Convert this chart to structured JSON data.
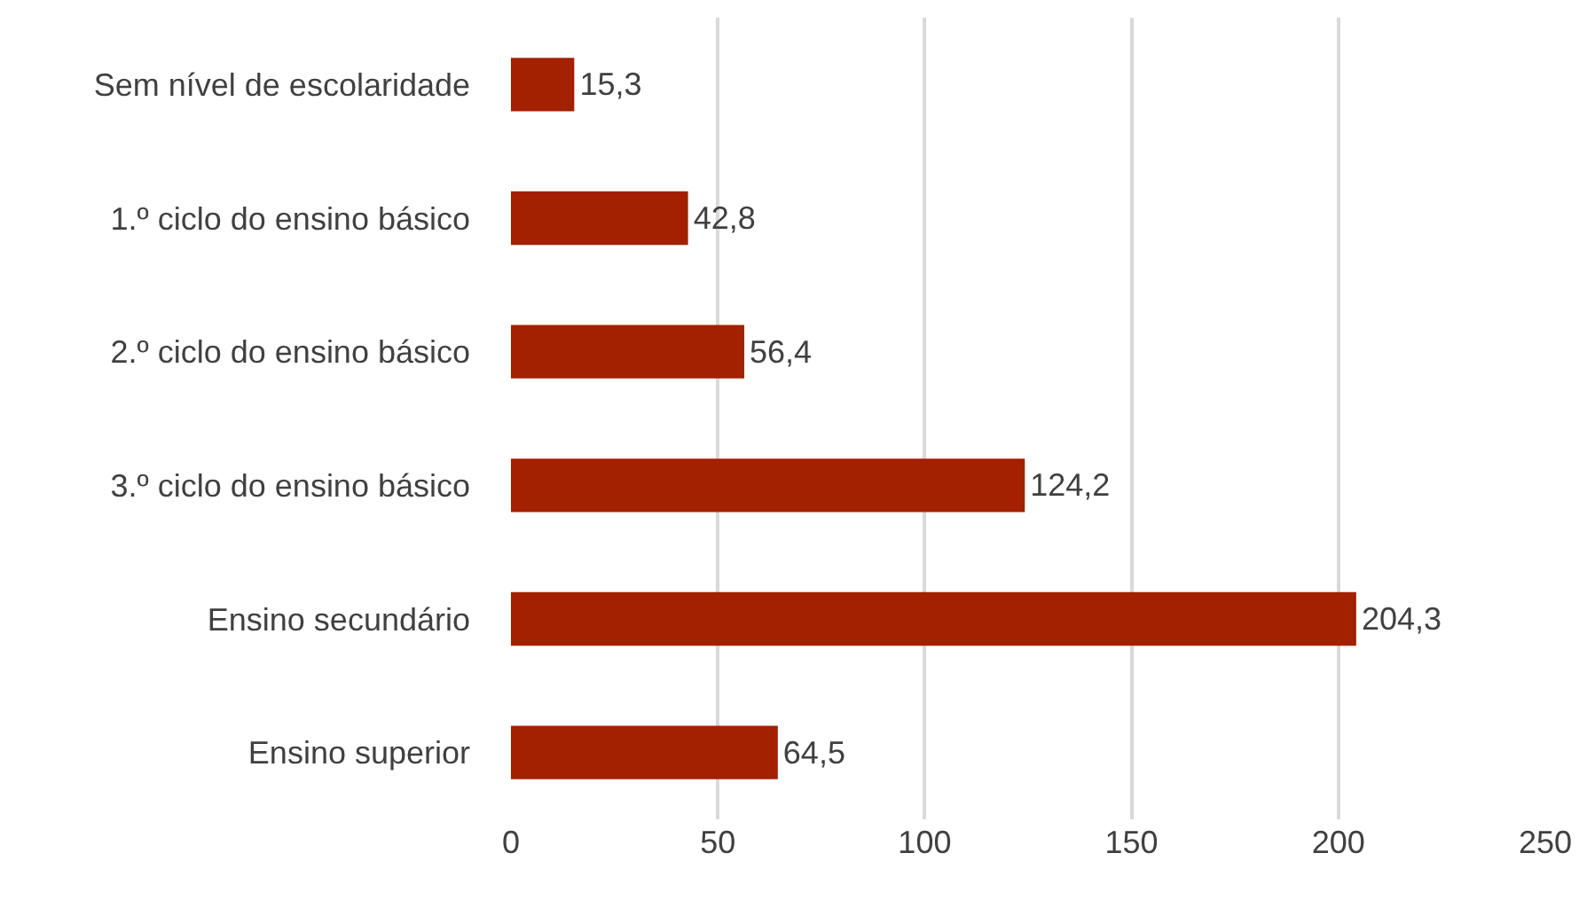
{
  "chart_data": {
    "type": "bar",
    "orientation": "horizontal",
    "categories": [
      "Sem nível de escolaridade",
      "1.º ciclo do ensino básico",
      "2.º ciclo do ensino básico",
      "3.º ciclo do ensino básico",
      "Ensino secundário",
      "Ensino superior"
    ],
    "values": [
      15.3,
      42.8,
      56.4,
      124.2,
      204.3,
      64.5
    ],
    "value_labels": [
      "15,3",
      "42,8",
      "56,4",
      "124,2",
      "204,3",
      "64,5"
    ],
    "color": "#a32000",
    "xlim": [
      0,
      250
    ],
    "xticks": [
      0,
      50,
      100,
      150,
      200,
      250
    ],
    "grid": "x"
  }
}
